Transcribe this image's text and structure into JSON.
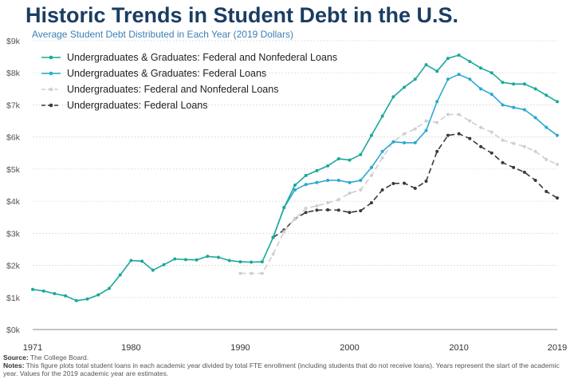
{
  "title": "Historic Trends in Student Debt in the U.S.",
  "subtitle": "Average Student Debt Distributed in Each Year (2019 Dollars)",
  "source_label": "Source:",
  "source_text": "The College Board.",
  "notes_label": "Notes:",
  "notes_text": "This figure plots total student loans in each academic year divided by total FTE enrollment (including students that do not receive loans). Years represent the start of the academic year. Values for the 2019 academic year are estimates.",
  "chart_data": {
    "type": "line",
    "title": "Historic Trends in Student Debt in the U.S.",
    "subtitle": "Average Student Debt Distributed in Each Year (2019 Dollars)",
    "xlim": [
      1971,
      2019
    ],
    "ylim": [
      0,
      9000
    ],
    "x_ticks": [
      1971,
      1980,
      1990,
      2000,
      2010,
      2019
    ],
    "x_tick_labels": [
      "1971",
      "1980",
      "1990",
      "2000",
      "2010",
      "2019"
    ],
    "y_ticks": [
      0,
      1000,
      2000,
      3000,
      4000,
      5000,
      6000,
      7000,
      8000,
      9000
    ],
    "y_tick_labels": [
      "$0k",
      "$1k",
      "$2k",
      "$3k",
      "$4k",
      "$5k",
      "$6k",
      "$7k",
      "$8k",
      "$9k"
    ],
    "grid": "horizontal",
    "legend_position": "top-left",
    "series": [
      {
        "name": "Undergraduates & Graduates: Federal and Nonfederal Loans",
        "color": "#1aa89a",
        "dash": "solid",
        "marker": "circle",
        "x": [
          1971,
          1972,
          1973,
          1974,
          1975,
          1976,
          1977,
          1978,
          1979,
          1980,
          1981,
          1982,
          1983,
          1984,
          1985,
          1986,
          1987,
          1988,
          1989,
          1990,
          1991,
          1992,
          1993,
          1994,
          1995,
          1996,
          1997,
          1998,
          1999,
          2000,
          2001,
          2002,
          2003,
          2004,
          2005,
          2006,
          2007,
          2008,
          2009,
          2010,
          2011,
          2012,
          2013,
          2014,
          2015,
          2016,
          2017,
          2018,
          2019
        ],
        "y": [
          1250,
          1200,
          1120,
          1050,
          900,
          950,
          1080,
          1280,
          1700,
          2150,
          2130,
          1850,
          2020,
          2200,
          2180,
          2170,
          2280,
          2250,
          2150,
          2110,
          2100,
          2110,
          2870,
          3800,
          4500,
          4800,
          4950,
          5100,
          5320,
          5280,
          5450,
          6050,
          6650,
          7250,
          7550,
          7800,
          8250,
          8050,
          8450,
          8550,
          8350,
          8150,
          8000,
          7700,
          7650,
          7650,
          7500,
          7300,
          7100
        ]
      },
      {
        "name": "Undergraduates & Graduates: Federal Loans",
        "color": "#29a9cf",
        "dash": "solid",
        "marker": "circle",
        "x": [
          1993,
          1994,
          1995,
          1996,
          1997,
          1998,
          1999,
          2000,
          2001,
          2002,
          2003,
          2004,
          2005,
          2006,
          2007,
          2008,
          2009,
          2010,
          2011,
          2012,
          2013,
          2014,
          2015,
          2016,
          2017,
          2018,
          2019
        ],
        "y": [
          2870,
          3800,
          4350,
          4520,
          4580,
          4650,
          4650,
          4580,
          4650,
          5050,
          5550,
          5850,
          5820,
          5820,
          6200,
          7100,
          7800,
          7950,
          7800,
          7500,
          7330,
          7000,
          6920,
          6850,
          6600,
          6300,
          6050
        ]
      },
      {
        "name": "Undergraduates: Federal and Nonfederal Loans",
        "color": "#cfcfcf",
        "dash": "dashed",
        "marker": "circle",
        "x": [
          1990,
          1991,
          1992,
          1993,
          1994,
          1995,
          1996,
          1997,
          1998,
          1999,
          2000,
          2001,
          2002,
          2003,
          2004,
          2005,
          2006,
          2007,
          2008,
          2009,
          2010,
          2011,
          2012,
          2013,
          2014,
          2015,
          2016,
          2017,
          2018,
          2019
        ],
        "y": [
          1750,
          1750,
          1750,
          2350,
          3050,
          3450,
          3780,
          3850,
          3950,
          4050,
          4250,
          4350,
          4800,
          5350,
          5850,
          6100,
          6250,
          6500,
          6450,
          6700,
          6700,
          6500,
          6300,
          6150,
          5900,
          5800,
          5700,
          5550,
          5300,
          5150
        ]
      },
      {
        "name": "Undergraduates: Federal Loans",
        "color": "#3a3a3a",
        "dash": "dashed",
        "marker": "circle",
        "x": [
          1993,
          1994,
          1995,
          1996,
          1997,
          1998,
          1999,
          2000,
          2001,
          2002,
          2003,
          2004,
          2005,
          2006,
          2007,
          2008,
          2009,
          2010,
          2011,
          2012,
          2013,
          2014,
          2015,
          2016,
          2017,
          2018,
          2019
        ],
        "y": [
          2870,
          3100,
          3450,
          3650,
          3720,
          3730,
          3720,
          3650,
          3700,
          3950,
          4350,
          4550,
          4560,
          4400,
          4620,
          5550,
          6050,
          6100,
          5950,
          5700,
          5500,
          5200,
          5050,
          4900,
          4650,
          4300,
          4100
        ]
      }
    ]
  }
}
